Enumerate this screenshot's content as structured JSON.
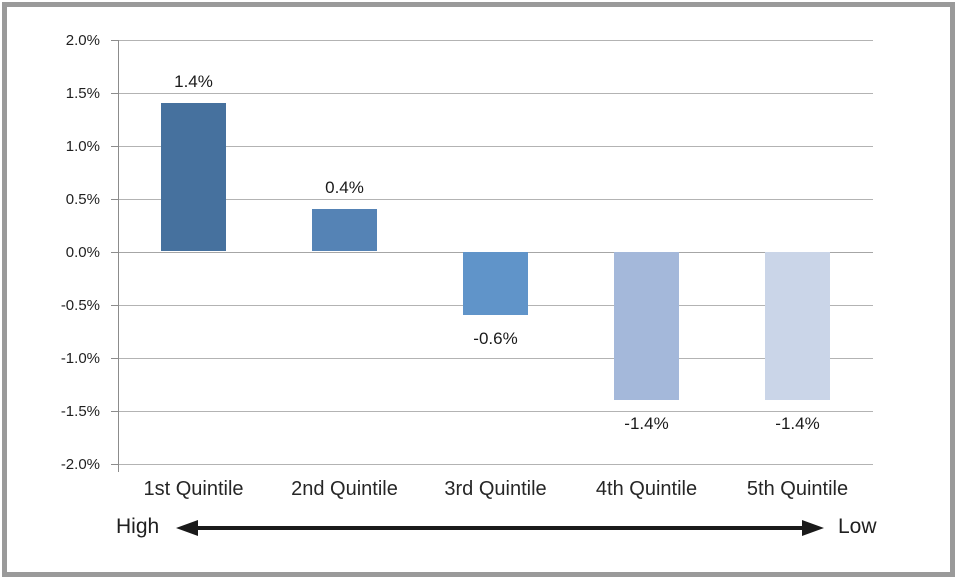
{
  "chart_data": {
    "type": "bar",
    "categories": [
      "1st Quintile",
      "2nd Quintile",
      "3rd Quintile",
      "4th Quintile",
      "5th Quintile"
    ],
    "values": [
      1.4,
      0.4,
      -0.6,
      -1.4,
      -1.4
    ],
    "bar_labels": [
      "1.4%",
      "0.4%",
      "-0.6%",
      "-1.4%",
      "-1.4%"
    ],
    "bar_colors": [
      "#46719E",
      "#5583B5",
      "#6094C9",
      "#A4B8DA",
      "#CAD5E8"
    ],
    "y_ticks": [
      2.0,
      1.5,
      1.0,
      0.5,
      0.0,
      -0.5,
      -1.0,
      -1.5,
      -2.0
    ],
    "y_tick_labels": [
      "2.0%",
      "1.5%",
      "1.0%",
      "0.5%",
      "0.0%",
      "-0.5%",
      "-1.0%",
      "-1.5%",
      "-2.0%"
    ],
    "ylim": [
      -2.0,
      2.0
    ],
    "grid": true,
    "legend_position": "none",
    "title": "",
    "xlabel": "",
    "ylabel": ""
  },
  "axis_annotation": {
    "left_label": "High",
    "right_label": "Low"
  },
  "colors": {
    "gridline": "#b3b3b3",
    "axis_line": "#8c8c8c",
    "text": "#1f1f1f",
    "arrow": "#1a1a1a",
    "frame_border": "#9a9a9a",
    "background": "#ffffff"
  }
}
